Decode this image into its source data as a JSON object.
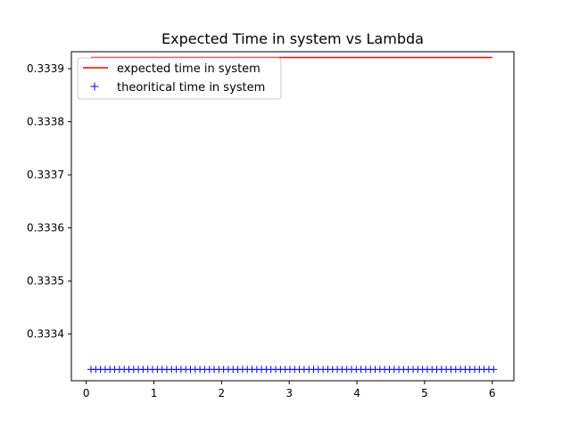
{
  "chart_data": {
    "type": "line",
    "title": "Expected Time in system vs Lambda",
    "xlabel": "",
    "ylabel": "",
    "xlim": [
      -0.22,
      6.32
    ],
    "ylim": [
      0.333312,
      0.333932
    ],
    "x_ticks": [
      0,
      1,
      2,
      3,
      4,
      5,
      6
    ],
    "y_ticks": [
      0.3334,
      0.3335,
      0.3336,
      0.3337,
      0.3338,
      0.3339
    ],
    "x_tick_labels": [
      "0",
      "1",
      "2",
      "3",
      "4",
      "5",
      "6"
    ],
    "y_tick_labels": [
      "0.3334",
      "0.3335",
      "0.3336",
      "0.3337",
      "0.3338",
      "0.3339"
    ],
    "grid": false,
    "legend_placement": "upper-left",
    "series": [
      {
        "name": "expected time in system",
        "style": "line",
        "color": "#ff0000",
        "x": [
          0.07,
          6.0
        ],
        "y": [
          0.333921,
          0.333921
        ]
      },
      {
        "name": "theoritical time in system",
        "style": "plus-markers",
        "color": "#0000ff",
        "x_start": 0.07,
        "x_end": 6.0,
        "x_step": 0.07,
        "y_constant": 0.3333333
      }
    ]
  }
}
